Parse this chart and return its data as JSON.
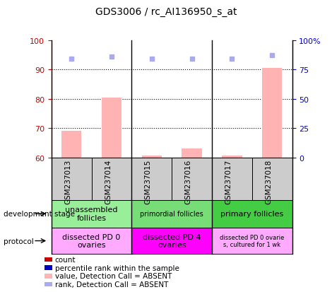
{
  "title": "GDS3006 / rc_AI136950_s_at",
  "samples": [
    "GSM237013",
    "GSM237014",
    "GSM237015",
    "GSM237016",
    "GSM237017",
    "GSM237018"
  ],
  "bar_values": [
    69.0,
    80.5,
    60.5,
    63.0,
    60.5,
    90.5
  ],
  "bar_color_absent": "#ffb3b3",
  "rank_values": [
    84.0,
    86.0,
    84.0,
    84.0,
    84.0,
    87.0
  ],
  "rank_color_absent": "#aaaaee",
  "detection_calls": [
    "ABSENT",
    "ABSENT",
    "ABSENT",
    "ABSENT",
    "ABSENT",
    "ABSENT"
  ],
  "ylim_left": [
    60,
    100
  ],
  "ylim_right": [
    0,
    100
  ],
  "yticks_left": [
    60,
    70,
    80,
    90,
    100
  ],
  "yticks_right": [
    0,
    25,
    50,
    75,
    100
  ],
  "ytick_labels_right": [
    "0",
    "25",
    "50",
    "75",
    "100%"
  ],
  "dev_stage_groups": [
    {
      "label": "unassembled\nfollicles",
      "start": 0,
      "end": 2,
      "color": "#99ee99",
      "fontsize": 8
    },
    {
      "label": "primordial follicles",
      "start": 2,
      "end": 4,
      "color": "#77dd77",
      "fontsize": 7
    },
    {
      "label": "primary follicles",
      "start": 4,
      "end": 6,
      "color": "#44cc44",
      "fontsize": 8
    }
  ],
  "protocol_groups": [
    {
      "label": "dissected PD 0\novaries",
      "start": 0,
      "end": 2,
      "color": "#ffaaff",
      "fontsize": 8
    },
    {
      "label": "dissected PD 4\novaries",
      "start": 2,
      "end": 4,
      "color": "#ff00ff",
      "fontsize": 8
    },
    {
      "label": "dissected PD 0 ovarie\ns, cultured for 1 wk",
      "start": 4,
      "end": 6,
      "color": "#ffaaff",
      "fontsize": 6
    }
  ],
  "legend_items": [
    {
      "color": "#cc0000",
      "label": "count"
    },
    {
      "color": "#0000cc",
      "label": "percentile rank within the sample"
    },
    {
      "color": "#ffb3b3",
      "label": "value, Detection Call = ABSENT"
    },
    {
      "color": "#aaaaee",
      "label": "rank, Detection Call = ABSENT"
    }
  ],
  "left_axis_color": "#cc0000",
  "right_axis_color": "#0000cc",
  "sample_box_color": "#cccccc",
  "bar_width": 0.5
}
